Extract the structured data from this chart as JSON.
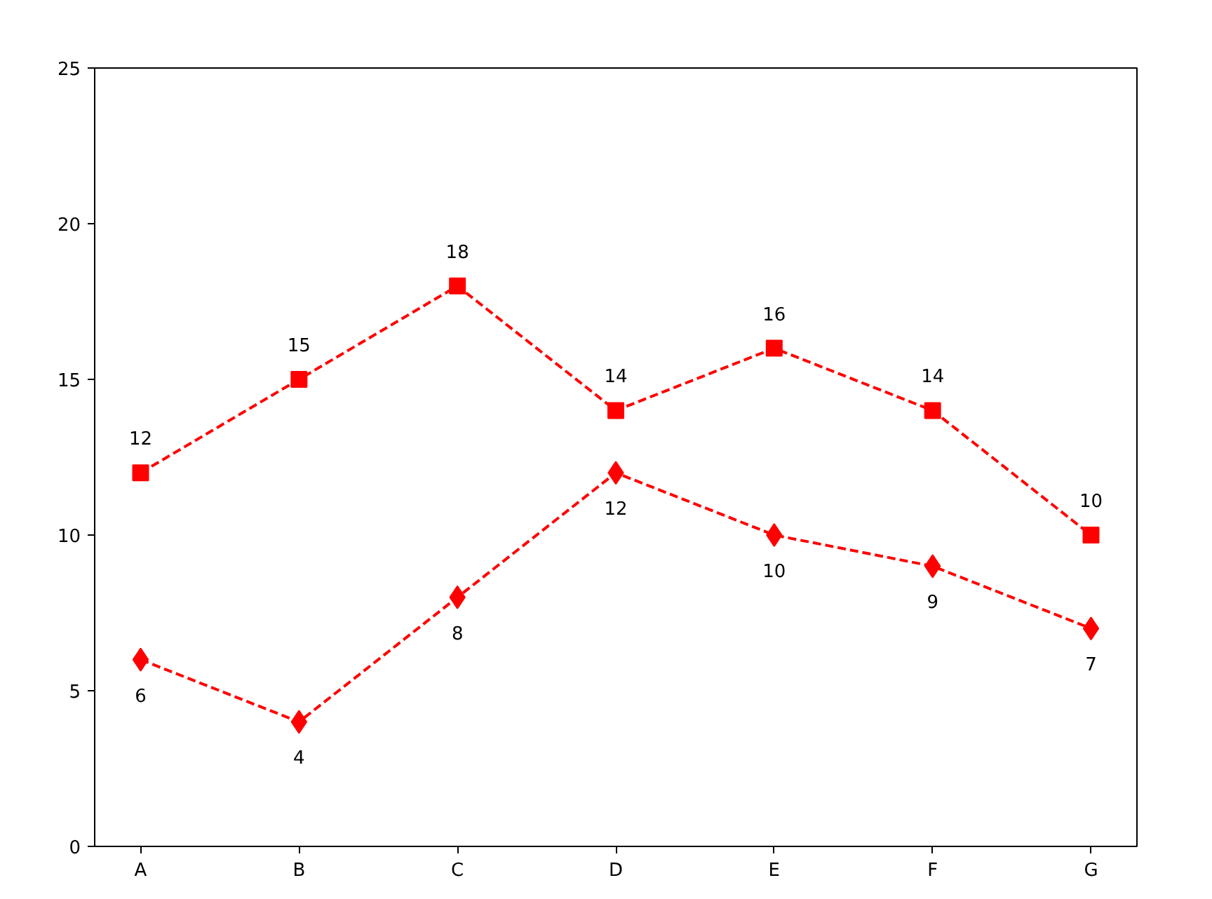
{
  "chart_data": {
    "type": "line",
    "categories": [
      "A",
      "B",
      "C",
      "D",
      "E",
      "F",
      "G"
    ],
    "series": [
      {
        "color": "#ff0000",
        "marker": "square",
        "values": [
          12,
          15,
          18,
          14,
          16,
          14,
          10
        ]
      },
      {
        "color": "#ff0000",
        "marker": "diamond",
        "values": [
          6,
          4,
          8,
          12,
          10,
          9,
          7
        ]
      }
    ],
    "line_style": "dashed",
    "ylim": [
      0,
      25
    ],
    "yticks": [
      0,
      5,
      10,
      15,
      20,
      25
    ],
    "grid": false,
    "data_labels": true
  }
}
